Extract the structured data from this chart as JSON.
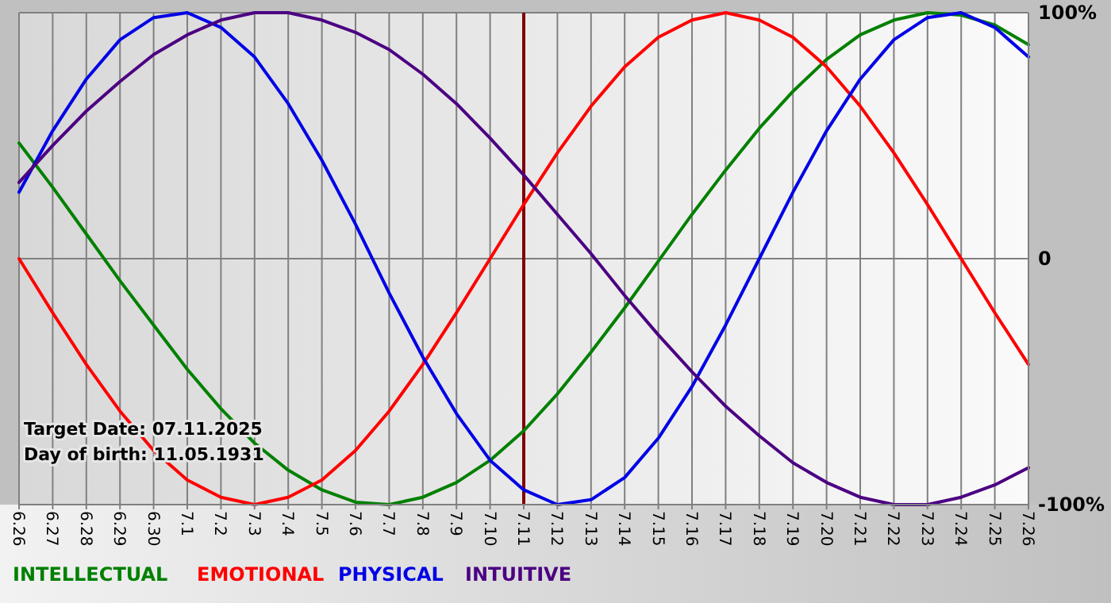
{
  "chart_data": {
    "type": "line",
    "categories": [
      "6.26",
      "6.27",
      "6.28",
      "6.29",
      "6.30",
      "7.1",
      "7.2",
      "7.3",
      "7.4",
      "7.5",
      "7.6",
      "7.7",
      "7.8",
      "7.9",
      "7.10",
      "7.11",
      "7.12",
      "7.13",
      "7.14",
      "7.15",
      "7.16",
      "7.17",
      "7.18",
      "7.19",
      "7.20",
      "7.21",
      "7.22",
      "7.23",
      "7.24",
      "7.25",
      "7.26"
    ],
    "series": [
      {
        "name": "INTELLECTUAL",
        "color": "#008000",
        "values": [
          47,
          29,
          10,
          -9,
          -27,
          -45,
          -61,
          -75,
          -86,
          -94,
          -99,
          -100,
          -97,
          -91,
          -82,
          -70,
          -55,
          -38,
          -20,
          -1,
          18,
          36,
          53,
          68,
          81,
          91,
          97,
          100,
          99,
          95,
          87
        ]
      },
      {
        "name": "EMOTIONAL",
        "color": "#ff0000",
        "values": [
          0,
          -22,
          -43,
          -62,
          -78,
          -90,
          -97,
          -100,
          -97,
          -90,
          -78,
          -62,
          -43,
          -22,
          0,
          22,
          43,
          62,
          78,
          90,
          97,
          100,
          97,
          90,
          78,
          62,
          43,
          22,
          0,
          -22,
          -43
        ]
      },
      {
        "name": "PHYSICAL",
        "color": "#0000e6",
        "values": [
          27,
          52,
          73,
          89,
          98,
          100,
          94,
          82,
          63,
          40,
          14,
          -14,
          -40,
          -63,
          -82,
          -94,
          -100,
          -98,
          -89,
          -73,
          -52,
          -27,
          0,
          27,
          52,
          73,
          89,
          98,
          100,
          94,
          82
        ]
      },
      {
        "name": "INTUITIVE",
        "color": "#4b0082",
        "values": [
          31,
          46,
          60,
          72,
          83,
          91,
          97,
          100,
          100,
          97,
          92,
          85,
          75,
          63,
          49,
          34,
          18,
          2,
          -15,
          -31,
          -46,
          -60,
          -72,
          -83,
          -91,
          -97,
          -100,
          -100,
          -97,
          -92,
          -85
        ]
      }
    ],
    "ylim": [
      -100,
      100
    ],
    "yticks": [
      {
        "value": 100,
        "label": "100%"
      },
      0,
      {
        "value": -100,
        "label": "-100%"
      }
    ],
    "grid": true,
    "legend": "bottom",
    "ref_lines": [
      {
        "axis": "x",
        "value": "7.11",
        "color": "#800000"
      }
    ],
    "annotations": [
      "Target Date: 07.11.2025",
      "Day of birth: 11.05.1931"
    ]
  }
}
